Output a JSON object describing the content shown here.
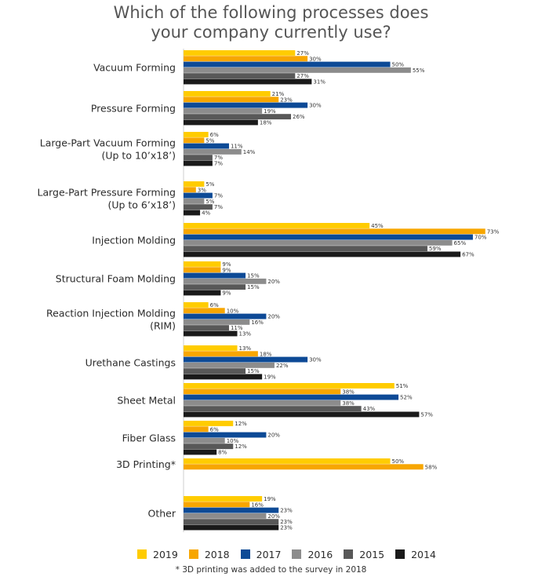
{
  "title_lines": [
    "Which of the following processes does",
    "your company currently use?"
  ],
  "footnote": "* 3D printing was added to the survey in 2018",
  "colors": {
    "2019": "#FFCC00",
    "2018": "#F7A600",
    "2017": "#0D4A96",
    "2016": "#8C8C8C",
    "2015": "#585858",
    "2014": "#1A1A1A"
  },
  "chart_data": {
    "type": "bar",
    "orientation": "horizontal",
    "xlim": [
      0,
      100
    ],
    "unit": "%",
    "grid": false,
    "legend_position": "bottom",
    "series_order": [
      "2019",
      "2018",
      "2017",
      "2016",
      "2015",
      "2014"
    ],
    "categories": [
      {
        "label": [
          "Vacuum Forming"
        ],
        "values": {
          "2019": 27,
          "2018": 30,
          "2017": 50,
          "2016": 55,
          "2015": 27,
          "2014": 31
        }
      },
      {
        "label": [
          "Pressure Forming"
        ],
        "values": {
          "2019": 21,
          "2018": 23,
          "2017": 30,
          "2016": 19,
          "2015": 26,
          "2014": 18
        }
      },
      {
        "label": [
          "Large-Part Vacuum Forming",
          "(Up to 10’x18’)"
        ],
        "values": {
          "2019": 6,
          "2018": 5,
          "2017": 11,
          "2016": 14,
          "2015": 7,
          "2014": 7
        }
      },
      {
        "label": [
          "Large-Part Pressure Forming",
          "(Up to 6’x18’)"
        ],
        "values": {
          "2019": 5,
          "2018": 3,
          "2017": 7,
          "2016": 5,
          "2015": 7,
          "2014": 4
        }
      },
      {
        "label": [
          "Injection Molding"
        ],
        "values": {
          "2019": 45,
          "2018": 73,
          "2017": 70,
          "2016": 65,
          "2015": 59,
          "2014": 67
        }
      },
      {
        "label": [
          "Structural Foam Molding"
        ],
        "values": {
          "2019": 9,
          "2018": 9,
          "2017": 15,
          "2016": 20,
          "2015": 15,
          "2014": 9
        }
      },
      {
        "label": [
          "Reaction Injection Molding",
          "(RIM)"
        ],
        "values": {
          "2019": 6,
          "2018": 10,
          "2017": 20,
          "2016": 16,
          "2015": 11,
          "2014": 13
        }
      },
      {
        "label": [
          "Urethane Castings"
        ],
        "values": {
          "2019": 13,
          "2018": 18,
          "2017": 30,
          "2016": 22,
          "2015": 15,
          "2014": 19
        }
      },
      {
        "label": [
          "Sheet Metal"
        ],
        "values": {
          "2019": 51,
          "2018": 38,
          "2017": 52,
          "2016": 38,
          "2015": 43,
          "2014": 57
        }
      },
      {
        "label": [
          "Fiber Glass"
        ],
        "values": {
          "2019": 12,
          "2018": 6,
          "2017": 20,
          "2016": 10,
          "2015": 12,
          "2014": 8
        }
      },
      {
        "label": [
          "3D Printing*"
        ],
        "values": {
          "2019": 50,
          "2018": 58
        }
      },
      {
        "label": [
          "Other"
        ],
        "values": {
          "2019": 19,
          "2018": 16,
          "2017": 23,
          "2016": 20,
          "2015": 23,
          "2014": 23
        }
      }
    ]
  }
}
